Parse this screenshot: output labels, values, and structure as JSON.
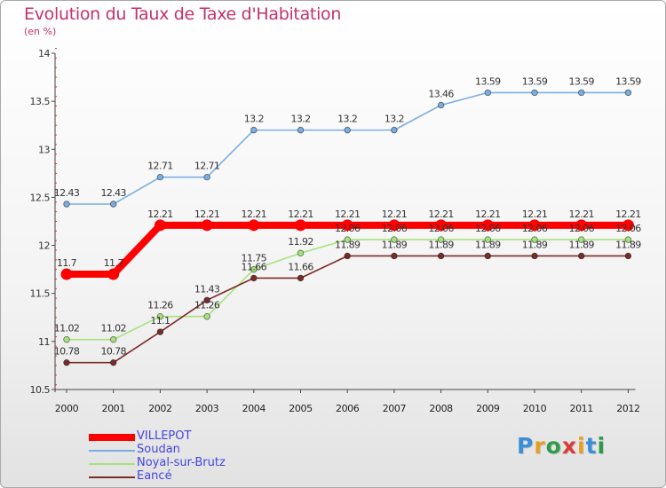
{
  "title": "Evolution du Taux de Taxe d'Habitation",
  "subtitle": "(en %)",
  "logo": "Proxiti",
  "chart_data": {
    "type": "line",
    "title": "Evolution du Taux de Taxe d'Habitation",
    "ylabel": "(en %)",
    "xlabel": "",
    "ylim": [
      10.5,
      14
    ],
    "yticks": [
      "10.5",
      "11",
      "11.5",
      "12",
      "12.5",
      "13",
      "13.5",
      "14"
    ],
    "categories": [
      "2000",
      "2001",
      "2002",
      "2003",
      "2004",
      "2005",
      "2006",
      "2007",
      "2008",
      "2009",
      "2010",
      "2011",
      "2012"
    ],
    "legend_position": "bottom-left",
    "grid": false,
    "series": [
      {
        "name": "VILLEPOT",
        "color": "#ff0000",
        "values": [
          11.7,
          11.7,
          12.21,
          12.21,
          12.21,
          12.21,
          12.21,
          12.21,
          12.21,
          12.21,
          12.21,
          12.21,
          12.21
        ],
        "labels": [
          "11.7",
          "11.7",
          "12.21",
          "12.21",
          "12.21",
          "12.21",
          "12.21",
          "12.21",
          "12.21",
          "12.21",
          "12.21",
          "12.21",
          "12.21"
        ]
      },
      {
        "name": "Soudan",
        "color": "#7aaee0",
        "values": [
          12.43,
          12.43,
          12.71,
          12.71,
          13.2,
          13.2,
          13.2,
          13.2,
          13.46,
          13.59,
          13.59,
          13.59,
          13.59
        ],
        "labels": [
          "12.43",
          "12.43",
          "12.71",
          "12.71",
          "13.2",
          "13.2",
          "13.2",
          "13.2",
          "13.46",
          "13.59",
          "13.59",
          "13.59",
          "13.59"
        ]
      },
      {
        "name": "Noyal-sur-Brutz",
        "color": "#a6e27c",
        "values": [
          11.02,
          11.02,
          11.26,
          11.26,
          11.75,
          11.92,
          12.06,
          12.06,
          12.06,
          12.06,
          12.06,
          12.06,
          12.06
        ],
        "labels": [
          "11.02",
          "11.02",
          "11.26",
          "11.26",
          "11.75",
          "11.92",
          "12.06",
          "12.06",
          "12.06",
          "12.06",
          "12.06",
          "12.06",
          "12.06"
        ]
      },
      {
        "name": "Eancé",
        "color": "#7a2b2b",
        "values": [
          10.78,
          10.78,
          11.1,
          11.43,
          11.66,
          11.66,
          11.89,
          11.89,
          11.89,
          11.89,
          11.89,
          11.89,
          11.89
        ],
        "labels": [
          "10.78",
          "10.78",
          "11.1",
          "11.43",
          "11.66",
          "11.66",
          "11.89",
          "11.89",
          "11.89",
          "11.89",
          "11.89",
          "11.89",
          "11.89"
        ]
      }
    ]
  }
}
